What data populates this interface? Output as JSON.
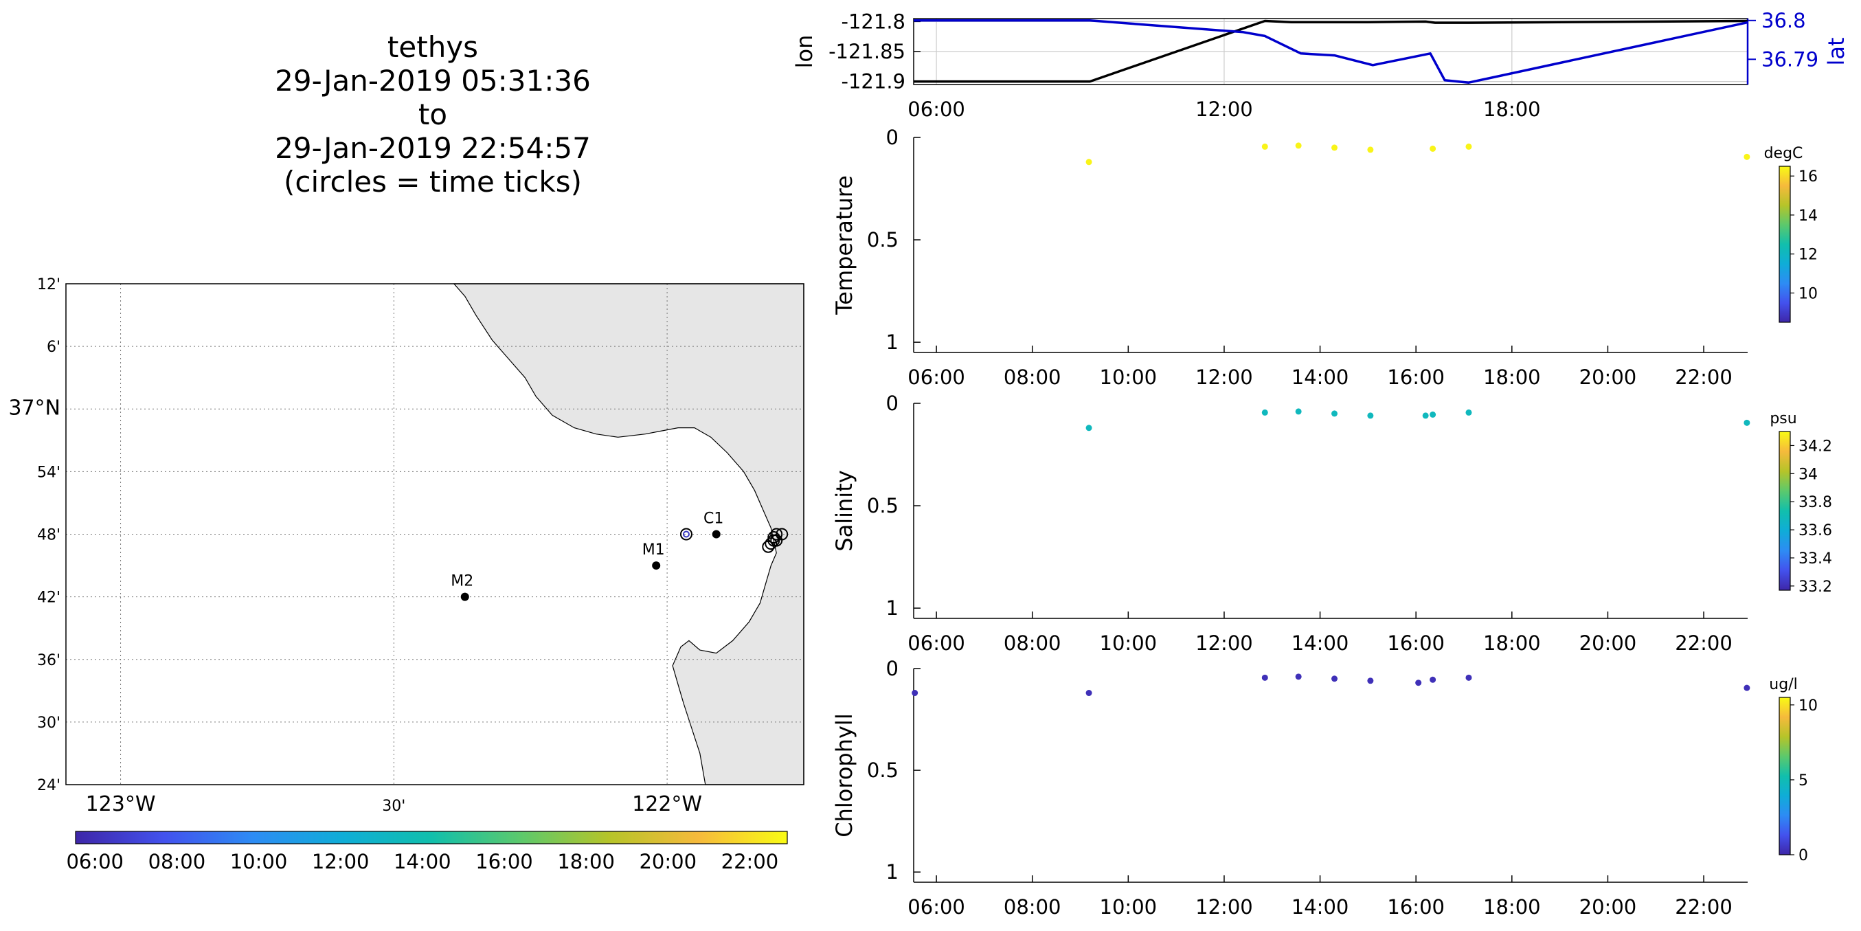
{
  "title_lines": [
    "tethys",
    "29-Jan-2019 05:31:36",
    "to",
    "29-Jan-2019 22:54:57",
    "(circles = time ticks)"
  ],
  "colors": {
    "land": "#e6e6e6",
    "lon_line": "#000000",
    "lat_line": "#0000cc",
    "lat_axis": "#0000cc",
    "grid": "#cccccc",
    "colormap": [
      "#3e26a8",
      "#4352ee",
      "#2d8cf4",
      "#0fadd7",
      "#11bfac",
      "#5cc96c",
      "#b6c429",
      "#f6ba3c",
      "#f9fb14"
    ]
  },
  "chart_data": [
    {
      "type": "map",
      "x_ticks": [
        {
          "lon": -123.0,
          "label": "123°W",
          "major": true
        },
        {
          "lon": -122.5,
          "label": "30'",
          "major": false
        },
        {
          "lon": -122.0,
          "label": "122°W",
          "major": true
        }
      ],
      "y_ticks": [
        {
          "lat": 37.2,
          "label": "12'"
        },
        {
          "lat": 37.1,
          "label": "6'"
        },
        {
          "lat": 37.0,
          "label": "37°N",
          "major": true
        },
        {
          "lat": 36.9,
          "label": "54'"
        },
        {
          "lat": 36.8,
          "label": "48'"
        },
        {
          "lat": 36.7,
          "label": "42'"
        },
        {
          "lat": 36.6,
          "label": "36'"
        },
        {
          "lat": 36.5,
          "label": "30'"
        },
        {
          "lat": 36.4,
          "label": "24'"
        }
      ],
      "lon_range": [
        -123.1,
        -121.75
      ],
      "lat_range": [
        36.4,
        37.2
      ],
      "stations": [
        {
          "name": "M2",
          "lon": -122.37,
          "lat": 36.7
        },
        {
          "name": "M1",
          "lon": -122.02,
          "lat": 36.75
        },
        {
          "name": "C1",
          "lon": -121.91,
          "lat": 36.8
        }
      ],
      "track_markers": [
        {
          "lon": -121.965,
          "lat": 36.8,
          "ring": true
        },
        {
          "lon": -121.8,
          "lat": 36.8
        },
        {
          "lon": -121.79,
          "lat": 36.8
        },
        {
          "lon": -121.805,
          "lat": 36.795
        },
        {
          "lon": -121.805,
          "lat": 36.79
        },
        {
          "lon": -121.81,
          "lat": 36.785
        },
        {
          "lon": -121.815,
          "lat": 36.78
        },
        {
          "lon": -121.8,
          "lat": 36.79
        }
      ],
      "grid": true,
      "colorbar": {
        "ticks": [
          "06:00",
          "08:00",
          "10:00",
          "12:00",
          "14:00",
          "16:00",
          "18:00",
          "20:00",
          "22:00"
        ],
        "t_range": [
          5.526,
          22.916
        ]
      }
    },
    {
      "type": "line",
      "x_range": [
        5.526,
        22.916
      ],
      "x_ticks": [
        {
          "t": 6,
          "label": "06:00"
        },
        {
          "t": 12,
          "label": "12:00"
        },
        {
          "t": 18,
          "label": "18:00"
        }
      ],
      "left_axis": {
        "label": "lon",
        "ticks": [
          -121.8,
          -121.85,
          -121.9
        ],
        "tick_labels": [
          "-121.8",
          "-121.85",
          "-121.9"
        ],
        "range": [
          -121.905,
          -121.795
        ]
      },
      "right_axis": {
        "label": "lat",
        "ticks": [
          36.8,
          36.79
        ],
        "tick_labels": [
          "36.8",
          "36.79"
        ],
        "range": [
          36.7835,
          36.8005
        ]
      },
      "series": [
        {
          "name": "lon",
          "axis": "left",
          "points": [
            [
              5.526,
              -121.9
            ],
            [
              9.2,
              -121.9
            ],
            [
              12.85,
              -121.799
            ],
            [
              13.4,
              -121.801
            ],
            [
              15.0,
              -121.801
            ],
            [
              16.2,
              -121.8
            ],
            [
              16.4,
              -121.802
            ],
            [
              17.1,
              -121.802
            ],
            [
              22.916,
              -121.799
            ]
          ]
        },
        {
          "name": "lat",
          "axis": "right",
          "points": [
            [
              5.526,
              36.8
            ],
            [
              9.2,
              36.8
            ],
            [
              12.4,
              36.797
            ],
            [
              12.85,
              36.796
            ],
            [
              13.6,
              36.7915
            ],
            [
              14.3,
              36.791
            ],
            [
              15.1,
              36.7885
            ],
            [
              16.3,
              36.7915
            ],
            [
              16.6,
              36.7846
            ],
            [
              17.1,
              36.784
            ],
            [
              22.916,
              36.7995
            ]
          ]
        }
      ],
      "grid": true
    },
    {
      "type": "scatter",
      "ylabel": "Temperature",
      "units": "degC",
      "x_range": [
        5.526,
        22.916
      ],
      "x_ticks": [
        "06:00",
        "08:00",
        "10:00",
        "12:00",
        "14:00",
        "16:00",
        "18:00",
        "20:00",
        "22:00"
      ],
      "y_range": [
        0,
        1.05
      ],
      "y_ticks": [
        {
          "v": 0,
          "label": "0"
        },
        {
          "v": 0.5,
          "label": "0.5"
        },
        {
          "v": 1,
          "label": "1"
        }
      ],
      "colorbar": {
        "range": [
          8.5,
          16.5
        ],
        "ticks": [
          {
            "v": 10,
            "label": "10"
          },
          {
            "v": 12,
            "label": "12"
          },
          {
            "v": 14,
            "label": "14"
          },
          {
            "v": 16,
            "label": "16"
          }
        ]
      },
      "points": [
        {
          "t": 9.18,
          "depth": 0.12,
          "value": 16.4
        },
        {
          "t": 12.85,
          "depth": 0.045,
          "value": 16.4
        },
        {
          "t": 13.55,
          "depth": 0.04,
          "value": 16.4
        },
        {
          "t": 14.3,
          "depth": 0.05,
          "value": 16.4
        },
        {
          "t": 15.05,
          "depth": 0.06,
          "value": 16.4
        },
        {
          "t": 16.35,
          "depth": 0.055,
          "value": 16.4
        },
        {
          "t": 17.1,
          "depth": 0.045,
          "value": 16.4
        },
        {
          "t": 22.9,
          "depth": 0.095,
          "value": 16.4
        }
      ]
    },
    {
      "type": "scatter",
      "ylabel": "Salinity",
      "units": "psu",
      "x_range": [
        5.526,
        22.916
      ],
      "x_ticks": [
        "06:00",
        "08:00",
        "10:00",
        "12:00",
        "14:00",
        "16:00",
        "18:00",
        "20:00",
        "22:00"
      ],
      "y_range": [
        0,
        1.05
      ],
      "y_ticks": [
        {
          "v": 0,
          "label": "0"
        },
        {
          "v": 0.5,
          "label": "0.5"
        },
        {
          "v": 1,
          "label": "1"
        }
      ],
      "colorbar": {
        "range": [
          33.17,
          34.3
        ],
        "ticks": [
          {
            "v": 33.2,
            "label": "33.2"
          },
          {
            "v": 33.4,
            "label": "33.4"
          },
          {
            "v": 33.6,
            "label": "33.6"
          },
          {
            "v": 33.8,
            "label": "33.8"
          },
          {
            "v": 34.0,
            "label": "34"
          },
          {
            "v": 34.2,
            "label": "34.2"
          }
        ]
      },
      "points": [
        {
          "t": 9.18,
          "depth": 0.12,
          "value": 33.68
        },
        {
          "t": 12.85,
          "depth": 0.045,
          "value": 33.68
        },
        {
          "t": 13.55,
          "depth": 0.04,
          "value": 33.68
        },
        {
          "t": 14.3,
          "depth": 0.05,
          "value": 33.68
        },
        {
          "t": 15.05,
          "depth": 0.06,
          "value": 33.68
        },
        {
          "t": 16.2,
          "depth": 0.06,
          "value": 33.68
        },
        {
          "t": 16.35,
          "depth": 0.055,
          "value": 33.68
        },
        {
          "t": 17.1,
          "depth": 0.045,
          "value": 33.68
        },
        {
          "t": 22.9,
          "depth": 0.095,
          "value": 33.68
        }
      ]
    },
    {
      "type": "scatter",
      "ylabel": "Chlorophyll",
      "units": "ug/l",
      "x_range": [
        5.526,
        22.916
      ],
      "x_ticks": [
        "06:00",
        "08:00",
        "10:00",
        "12:00",
        "14:00",
        "16:00",
        "18:00",
        "20:00",
        "22:00"
      ],
      "y_range": [
        0,
        1.05
      ],
      "y_ticks": [
        {
          "v": 0,
          "label": "0"
        },
        {
          "v": 0.5,
          "label": "0.5"
        },
        {
          "v": 1,
          "label": "1"
        }
      ],
      "colorbar": {
        "range": [
          0,
          10.5
        ],
        "ticks": [
          {
            "v": 0,
            "label": "0"
          },
          {
            "v": 5,
            "label": "5"
          },
          {
            "v": 10,
            "label": "10"
          }
        ]
      },
      "points": [
        {
          "t": 5.55,
          "depth": 0.12,
          "value": 0.3
        },
        {
          "t": 9.18,
          "depth": 0.12,
          "value": 0.3
        },
        {
          "t": 12.85,
          "depth": 0.045,
          "value": 0.3
        },
        {
          "t": 13.55,
          "depth": 0.04,
          "value": 0.3
        },
        {
          "t": 14.3,
          "depth": 0.05,
          "value": 0.3
        },
        {
          "t": 15.05,
          "depth": 0.06,
          "value": 0.3
        },
        {
          "t": 16.05,
          "depth": 0.07,
          "value": 0.3
        },
        {
          "t": 16.35,
          "depth": 0.055,
          "value": 0.3
        },
        {
          "t": 17.1,
          "depth": 0.045,
          "value": 0.3
        },
        {
          "t": 22.9,
          "depth": 0.095,
          "value": 0.3
        }
      ]
    }
  ]
}
